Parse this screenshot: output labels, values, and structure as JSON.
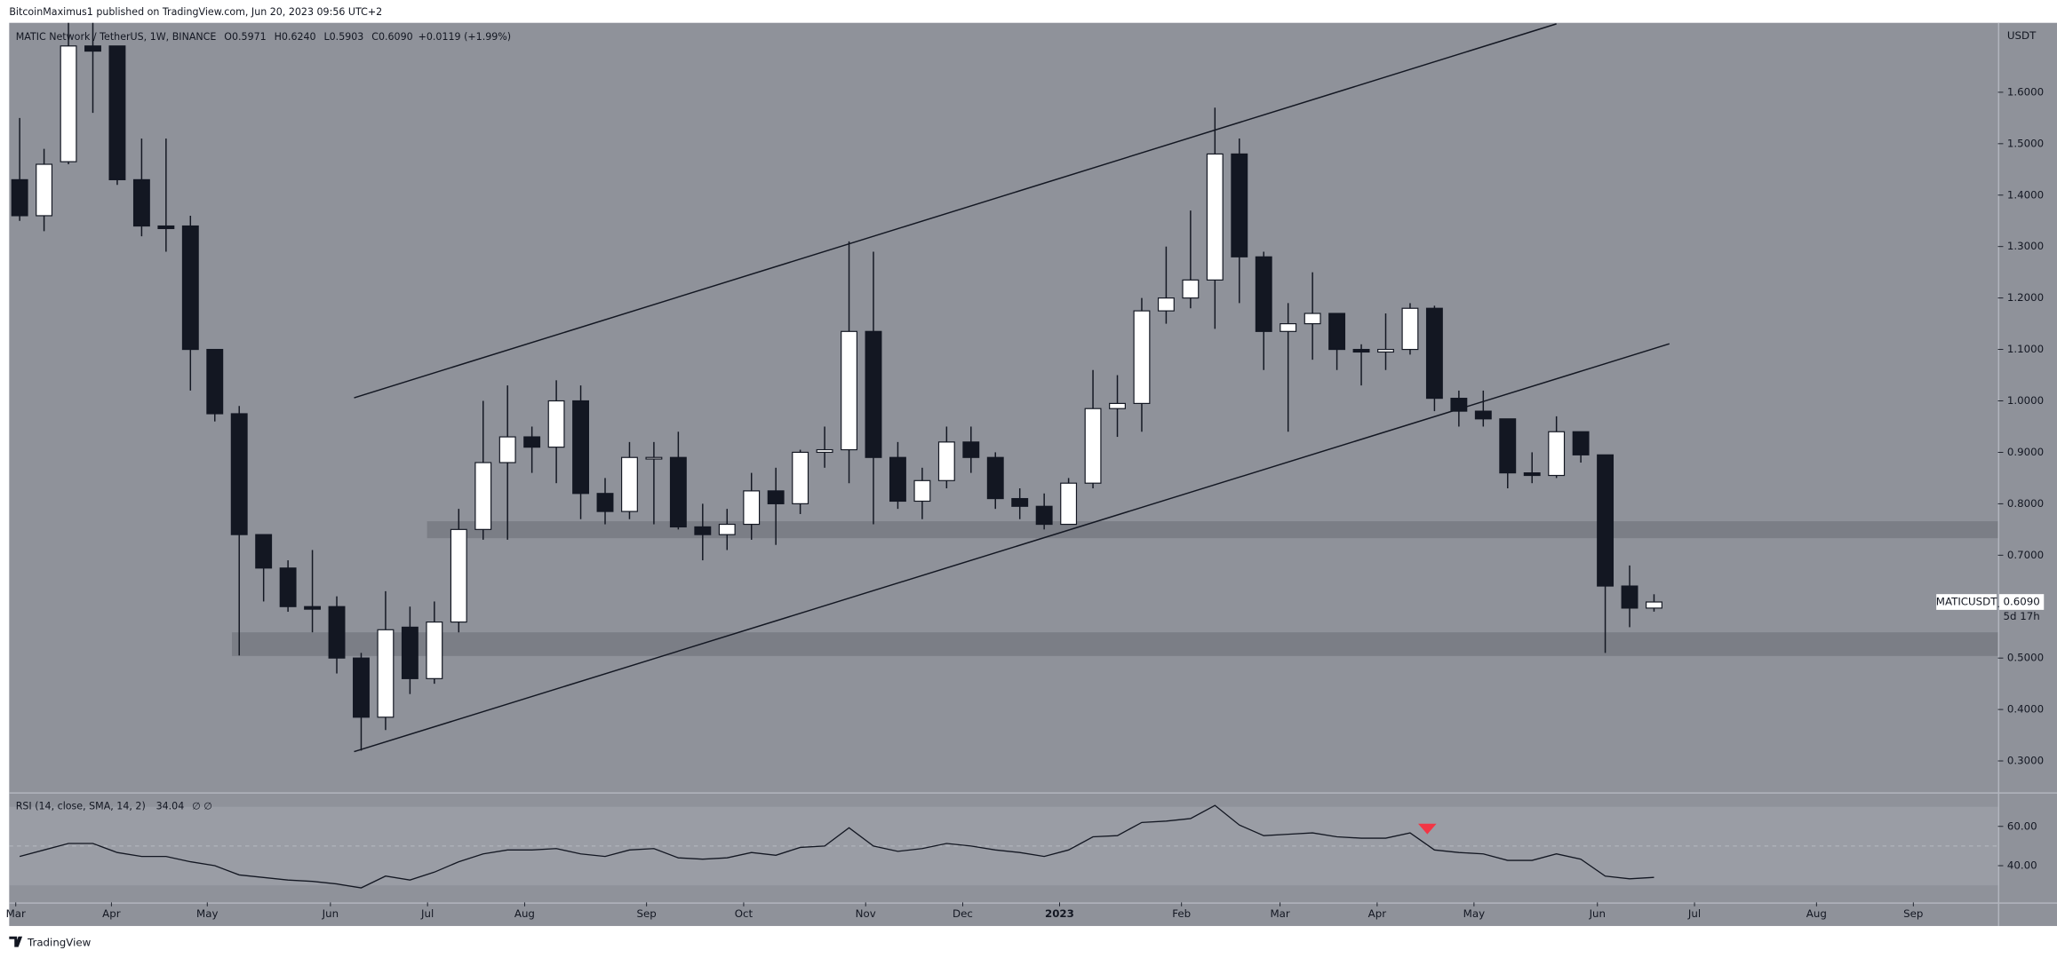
{
  "header": {
    "publisher": "BitcoinMaximus1 published on TradingView.com, Jun 20, 2023 09:56 UTC+2"
  },
  "footer": {
    "brand": "TradingView"
  },
  "chart_data": {
    "type": "candlestick",
    "legend": {
      "symbol": "MATIC Network / TetherUS, 1W, BINANCE",
      "items": [
        {
          "key": "O",
          "label": "0.5971"
        },
        {
          "key": "H",
          "label": "0.6240"
        },
        {
          "key": "L",
          "label": "0.5903"
        },
        {
          "key": "C",
          "label": "0.6090"
        }
      ],
      "change": "+0.0119 (+1.99%)"
    },
    "y_axis_title": "USDT",
    "categories": [
      null,
      null,
      null,
      null,
      null,
      null,
      null,
      null,
      null,
      null,
      null,
      null,
      null,
      null,
      null,
      null,
      null,
      null,
      null,
      null,
      null,
      null,
      null,
      null,
      null,
      null,
      null,
      null,
      null,
      null,
      null,
      null,
      null,
      null,
      null,
      null,
      null,
      null,
      null,
      null,
      null,
      null,
      null,
      null,
      null,
      null,
      null,
      null,
      null,
      null,
      null,
      null,
      null,
      null,
      null,
      null,
      null,
      null,
      null,
      null,
      null,
      null,
      null,
      null,
      null,
      null,
      null,
      null
    ],
    "open": [
      1.43,
      1.36,
      1.465,
      1.69,
      1.69,
      1.43,
      1.34,
      1.34,
      1.1,
      0.975,
      0.74,
      0.675,
      0.6,
      0.6,
      0.5,
      0.385,
      0.56,
      0.46,
      0.57,
      0.75,
      0.88,
      0.93,
      0.91,
      1.0,
      0.82,
      0.785,
      0.89,
      0.89,
      0.755,
      0.74,
      0.76,
      0.825,
      0.8,
      0.9,
      0.905,
      1.135,
      0.89,
      0.805,
      0.845,
      0.92,
      0.89,
      0.81,
      0.795,
      0.76,
      0.84,
      0.985,
      0.995,
      1.175,
      1.2,
      1.235,
      1.48,
      1.28,
      1.135,
      1.15,
      1.17,
      1.1,
      1.095,
      1.1,
      1.18,
      1.005,
      0.98,
      0.965,
      0.86,
      0.855,
      0.94,
      0.895,
      0.64,
      0.5971
    ],
    "high": [
      1.55,
      1.49,
      1.75,
      1.75,
      1.69,
      1.51,
      1.51,
      1.36,
      1.1,
      0.99,
      0.74,
      0.69,
      0.71,
      0.62,
      0.51,
      0.63,
      0.6,
      0.61,
      0.79,
      1.0,
      1.03,
      0.95,
      1.04,
      1.03,
      0.85,
      0.92,
      0.92,
      0.94,
      0.8,
      0.79,
      0.86,
      0.87,
      0.905,
      0.95,
      1.31,
      1.29,
      0.92,
      0.87,
      0.95,
      0.95,
      0.9,
      0.83,
      0.82,
      0.85,
      1.06,
      1.05,
      1.2,
      1.3,
      1.37,
      1.57,
      1.51,
      1.29,
      1.19,
      1.25,
      1.17,
      1.11,
      1.17,
      1.19,
      1.185,
      1.02,
      1.02,
      0.965,
      0.9,
      0.97,
      0.94,
      0.895,
      0.68,
      0.624
    ],
    "low": [
      1.35,
      1.33,
      1.46,
      1.56,
      1.42,
      1.32,
      1.29,
      1.02,
      0.96,
      0.505,
      0.61,
      0.59,
      0.55,
      0.47,
      0.32,
      0.36,
      0.43,
      0.45,
      0.55,
      0.73,
      0.73,
      0.86,
      0.84,
      0.77,
      0.76,
      0.77,
      0.76,
      0.75,
      0.69,
      0.71,
      0.73,
      0.72,
      0.78,
      0.87,
      0.84,
      0.76,
      0.79,
      0.77,
      0.83,
      0.86,
      0.79,
      0.77,
      0.75,
      0.76,
      0.83,
      0.93,
      0.94,
      1.15,
      1.18,
      1.14,
      1.19,
      1.06,
      0.94,
      1.08,
      1.06,
      1.03,
      1.06,
      1.09,
      0.98,
      0.95,
      0.95,
      0.83,
      0.84,
      0.85,
      0.88,
      0.51,
      0.56,
      0.5903
    ],
    "close": [
      1.36,
      1.46,
      1.69,
      1.68,
      1.43,
      1.34,
      1.335,
      1.1,
      0.975,
      0.74,
      0.675,
      0.6,
      0.595,
      0.5,
      0.385,
      0.555,
      0.46,
      0.57,
      0.75,
      0.88,
      0.93,
      0.91,
      1.0,
      0.82,
      0.785,
      0.89,
      0.89,
      0.755,
      0.74,
      0.76,
      0.825,
      0.8,
      0.9,
      0.905,
      1.135,
      0.89,
      0.805,
      0.845,
      0.92,
      0.89,
      0.81,
      0.795,
      0.76,
      0.84,
      0.985,
      0.995,
      1.175,
      1.2,
      1.235,
      1.48,
      1.28,
      1.135,
      1.15,
      1.17,
      1.1,
      1.095,
      1.1,
      1.18,
      1.005,
      0.98,
      0.965,
      0.86,
      0.855,
      0.94,
      0.895,
      0.64,
      0.5971,
      0.609
    ],
    "up_color": "#ffffff",
    "down_color": "#131722",
    "background": "#8f929a",
    "xlim": [
      -0.43,
      81.1
    ],
    "xticks": [
      {
        "value": -0.16,
        "label": "Mar"
      },
      {
        "value": 3.76,
        "label": "Apr"
      },
      {
        "value": 7.69,
        "label": "May"
      },
      {
        "value": 12.74,
        "label": "Jun"
      },
      {
        "value": 16.72,
        "label": "Jul"
      },
      {
        "value": 20.7,
        "label": "Aug"
      },
      {
        "value": 25.7,
        "label": "Sep"
      },
      {
        "value": 29.68,
        "label": "Oct"
      },
      {
        "value": 34.68,
        "label": "Nov"
      },
      {
        "value": 38.66,
        "label": "Dec"
      },
      {
        "value": 42.63,
        "label": "2023"
      },
      {
        "value": 47.63,
        "label": "Feb"
      },
      {
        "value": 51.67,
        "label": "Mar"
      },
      {
        "value": 55.65,
        "label": "Apr"
      },
      {
        "value": 59.62,
        "label": "May"
      },
      {
        "value": 64.68,
        "label": "Jun"
      },
      {
        "value": 68.66,
        "label": "Jul"
      },
      {
        "value": 73.66,
        "label": "Aug"
      },
      {
        "value": 77.63,
        "label": "Sep"
      }
    ],
    "ylim": [
      0.239,
      1.735
    ],
    "yticks": [
      {
        "value": 0.3,
        "label": "0.3000"
      },
      {
        "value": 0.4,
        "label": "0.4000"
      },
      {
        "value": 0.5,
        "label": "0.5000"
      },
      {
        "value": 0.6,
        "label": "0.6000"
      },
      {
        "value": 0.7,
        "label": "0.7000"
      },
      {
        "value": 0.8,
        "label": "0.8000"
      },
      {
        "value": 0.9,
        "label": "0.9000"
      },
      {
        "value": 1.0,
        "label": "1.0000"
      },
      {
        "value": 1.1,
        "label": "1.1000"
      },
      {
        "value": 1.2,
        "label": "1.2000"
      },
      {
        "value": 1.3,
        "label": "1.3000"
      },
      {
        "value": 1.4,
        "label": "1.4000"
      },
      {
        "value": 1.5,
        "label": "1.5000"
      },
      {
        "value": 1.6,
        "label": "1.6000"
      }
    ],
    "last_price": {
      "symbol": "MATICUSDT",
      "value": 0.609,
      "label": "0.6090",
      "countdown": "5d 17h"
    },
    "trendlines": [
      {
        "x": [
          13.71,
          63.0
        ],
        "y": [
          1.006,
          1.733
        ]
      },
      {
        "x": [
          13.71,
          67.63
        ],
        "y": [
          0.318,
          1.111
        ]
      }
    ],
    "zones": [
      {
        "x_start": 16.7,
        "y": [
          0.733,
          0.766
        ]
      },
      {
        "x_start": 8.7,
        "y": [
          0.504,
          0.55
        ]
      }
    ],
    "rsi": {
      "label": "RSI (14, close, SMA, 14, 2)",
      "extra": "∅ ∅",
      "values": [
        44.7,
        48,
        51.3,
        51.3,
        46.7,
        44.7,
        44.7,
        42,
        40,
        35.3,
        34,
        32.7,
        32,
        30.7,
        28.7,
        34.7,
        32.7,
        36.7,
        42,
        46,
        48,
        48,
        48.7,
        46,
        44.7,
        48,
        48.7,
        44,
        43.3,
        44,
        46.7,
        45.3,
        49.3,
        50,
        59.3,
        50,
        47.3,
        48.7,
        51.3,
        50,
        48,
        46.7,
        44.7,
        48,
        54.7,
        55.3,
        62,
        62.7,
        64,
        70.7,
        60.7,
        55.3,
        56,
        56.7,
        54.7,
        54,
        54,
        56.7,
        48,
        46.7,
        46,
        42.7,
        42.7,
        46,
        43.3,
        34.7,
        33.3,
        34.04
      ],
      "color": "#131722",
      "ylim": [
        21.3,
        76.7
      ],
      "yticks": [
        {
          "value": 40,
          "label": "40.00"
        },
        {
          "value": 60,
          "label": "60.00"
        }
      ],
      "band": [
        30,
        70
      ],
      "midline": 50
    }
  }
}
